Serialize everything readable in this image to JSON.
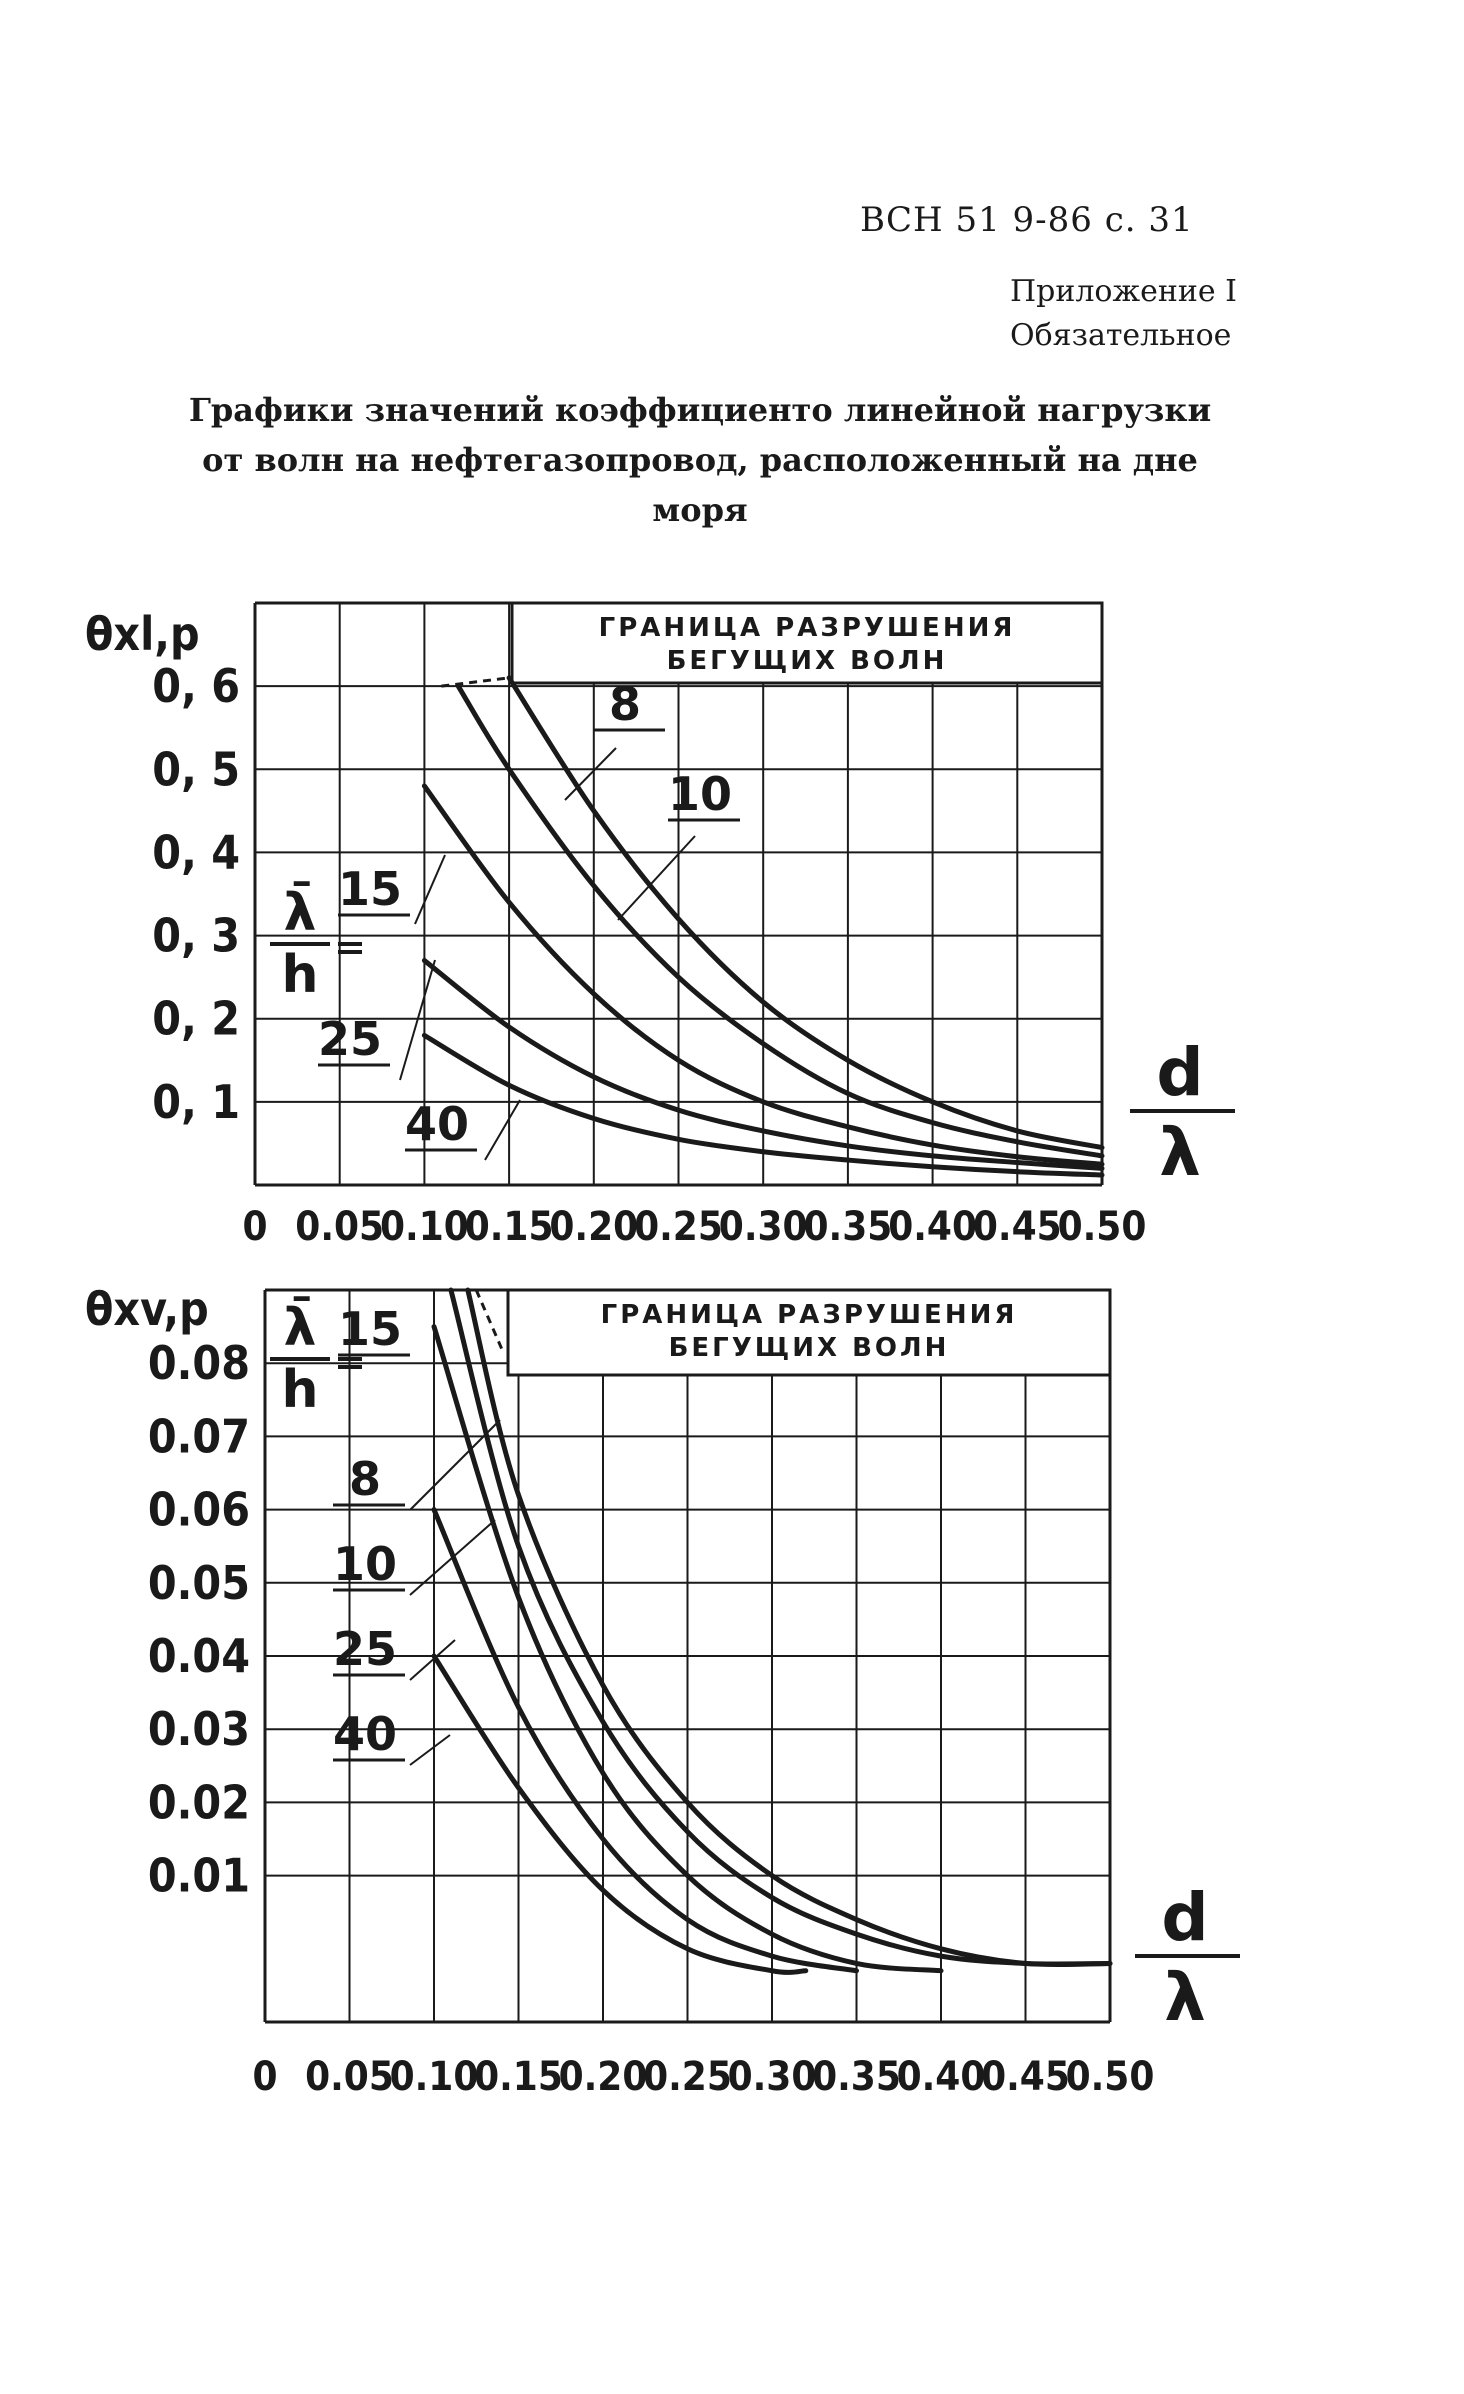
{
  "header": {
    "doc_ref": "ВСН 51 9-86 с. 31",
    "appendix_line1": "Приложение I",
    "appendix_line2": "Обязательное",
    "title_line1": "Графики значений коэффициенто линейной нагрузки",
    "title_line2": "от волн на нефтегазопровод, расположенный на дне",
    "title_line3": "моря"
  },
  "chart_data": [
    {
      "type": "line",
      "ylabel": "θxl,p",
      "xlabel_num": "d",
      "xlabel_den": "λ",
      "param_label_num": "λ̄",
      "param_label_den": "h",
      "boundary_label_line1": "ГРАНИЦА РАЗРУШЕНИЯ",
      "boundary_label_line2": "БЕГУЩИХ ВОЛН",
      "xlim": [
        0,
        0.5
      ],
      "ylim": [
        0,
        0.7
      ],
      "x_ticks": [
        "0",
        "0.05",
        "0.10",
        "0.15",
        "0.20",
        "0.25",
        "0.30",
        "0.35",
        "0.40",
        "0.45",
        "0.50"
      ],
      "y_ticks": [
        "0, 6",
        "0, 5",
        "0, 4",
        "0, 3",
        "0, 2",
        "0, 1"
      ],
      "y_tick_values": [
        0.6,
        0.5,
        0.4,
        0.3,
        0.2,
        0.1
      ],
      "grid": true,
      "series": [
        {
          "name": "8",
          "x": [
            0.15,
            0.2,
            0.25,
            0.3,
            0.35,
            0.4,
            0.45,
            0.5
          ],
          "y": [
            0.61,
            0.45,
            0.32,
            0.22,
            0.15,
            0.1,
            0.065,
            0.045
          ]
        },
        {
          "name": "10",
          "x": [
            0.12,
            0.15,
            0.2,
            0.25,
            0.3,
            0.35,
            0.4,
            0.45,
            0.5
          ],
          "y": [
            0.6,
            0.5,
            0.36,
            0.25,
            0.17,
            0.11,
            0.075,
            0.052,
            0.035
          ]
        },
        {
          "name": "15",
          "x": [
            0.1,
            0.15,
            0.2,
            0.25,
            0.3,
            0.35,
            0.4,
            0.45,
            0.5
          ],
          "y": [
            0.48,
            0.34,
            0.23,
            0.15,
            0.1,
            0.07,
            0.048,
            0.034,
            0.025
          ]
        },
        {
          "name": "25",
          "x": [
            0.1,
            0.15,
            0.2,
            0.25,
            0.3,
            0.35,
            0.4,
            0.45,
            0.5
          ],
          "y": [
            0.27,
            0.19,
            0.13,
            0.09,
            0.065,
            0.047,
            0.035,
            0.027,
            0.02
          ]
        },
        {
          "name": "40",
          "x": [
            0.1,
            0.15,
            0.2,
            0.25,
            0.3,
            0.35,
            0.4,
            0.45,
            0.5
          ],
          "y": [
            0.18,
            0.12,
            0.08,
            0.055,
            0.04,
            0.03,
            0.022,
            0.016,
            0.012
          ]
        }
      ],
      "boundary": {
        "x": [
          0.11,
          0.15
        ],
        "y": [
          0.6,
          0.61
        ]
      }
    },
    {
      "type": "line",
      "ylabel": "θxv,p",
      "xlabel_num": "d",
      "xlabel_den": "λ",
      "param_label_num": "λ̄",
      "param_label_den": "h",
      "boundary_label_line1": "ГРАНИЦА РАЗРУШЕНИЯ",
      "boundary_label_line2": "БЕГУЩИХ ВОЛН",
      "xlim": [
        0,
        0.5
      ],
      "ylim": [
        -0.01,
        0.09
      ],
      "x_ticks": [
        "0",
        "0.05",
        "0.10",
        "0.15",
        "0.20",
        "0.25",
        "0.30",
        "0.35",
        "0.40",
        "0.45",
        "0.50"
      ],
      "y_ticks": [
        "0.08",
        "0.07",
        "0.06",
        "0.05",
        "0.04",
        "0.03",
        "0.02",
        "0.01"
      ],
      "y_tick_values": [
        0.08,
        0.07,
        0.06,
        0.05,
        0.04,
        0.03,
        0.02,
        0.01
      ],
      "grid": true,
      "series": [
        {
          "name": "15",
          "x": [
            0.12,
            0.15,
            0.2,
            0.25,
            0.3,
            0.35,
            0.4,
            0.45,
            0.5
          ],
          "y": [
            0.09,
            0.062,
            0.036,
            0.02,
            0.01,
            0.004,
            0.0,
            -0.002,
            -0.002
          ]
        },
        {
          "name": "8",
          "x": [
            0.11,
            0.15,
            0.2,
            0.25,
            0.3,
            0.35,
            0.4,
            0.45,
            0.5
          ],
          "y": [
            0.09,
            0.055,
            0.031,
            0.016,
            0.007,
            0.002,
            -0.001,
            -0.002,
            -0.002
          ]
        },
        {
          "name": "10",
          "x": [
            0.1,
            0.15,
            0.2,
            0.25,
            0.3,
            0.35,
            0.4
          ],
          "y": [
            0.085,
            0.048,
            0.024,
            0.01,
            0.002,
            -0.002,
            -0.003
          ]
        },
        {
          "name": "25",
          "x": [
            0.1,
            0.15,
            0.2,
            0.25,
            0.3,
            0.35
          ],
          "y": [
            0.06,
            0.033,
            0.015,
            0.004,
            -0.001,
            -0.003
          ]
        },
        {
          "name": "40",
          "x": [
            0.1,
            0.15,
            0.2,
            0.25,
            0.3,
            0.32
          ],
          "y": [
            0.04,
            0.022,
            0.008,
            0.0,
            -0.003,
            -0.003
          ]
        }
      ],
      "boundary": {
        "x": [
          0.125,
          0.14
        ],
        "y": [
          0.09,
          0.082
        ]
      }
    }
  ]
}
